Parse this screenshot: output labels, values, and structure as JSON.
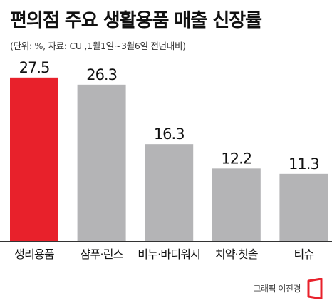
{
  "title": "편의점 주요 생활용품 매출 신장률",
  "subtitle": "(단위: %, 자료: CU ,1월1일~3월6일 전년대비)",
  "credit": "그래픽 이진경",
  "chart_data": {
    "type": "bar",
    "categories": [
      "생리용품",
      "샴푸·린스",
      "비누·바디워시",
      "치약·칫솔",
      "티슈"
    ],
    "values": [
      27.5,
      26.3,
      16.3,
      12.2,
      11.3
    ],
    "value_labels": [
      "27.5",
      "26.3",
      "16.3",
      "12.2",
      "11.3"
    ],
    "ylim": [
      0,
      30
    ],
    "grid": false,
    "colors": {
      "highlight": "#e8212b",
      "default": "#b4b4b6",
      "baseline": "#333333",
      "logo": "#e8212b"
    },
    "highlight_index": 0
  }
}
